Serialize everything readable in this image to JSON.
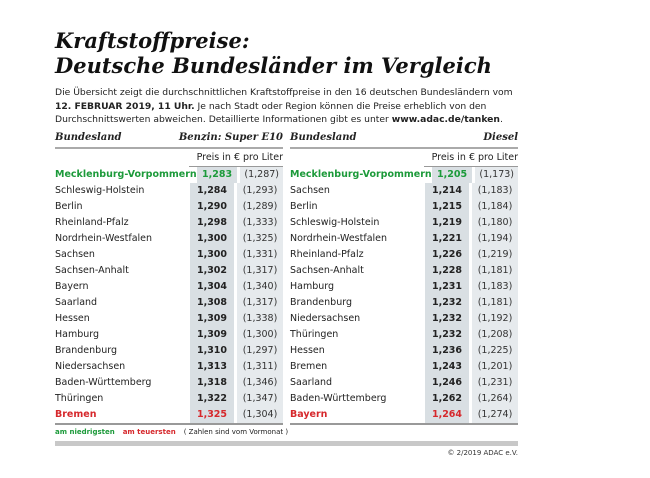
{
  "title": {
    "line1": "Kraftstoffpreise:",
    "line2": "Deutsche Bundesländer im Vergleich"
  },
  "intro": {
    "part1": "Die Übersicht zeigt die durchschnittlichen Kraftstoffpreise in den 16 deutschen Bundesländern vom ",
    "date": "12. FEBRUAR 2019, 11 Uhr.",
    "part2": " Je nach Stadt oder Region können die Preise erheblich von den Durchschnittswerten abweichen. Detaillierte Informationen gibt es unter ",
    "url": "www.adac.de/tanken",
    "part3": "."
  },
  "colors": {
    "lowest": "#1c9a3a",
    "highest": "#d6282c"
  },
  "benzin": {
    "col_state": "Bundesland",
    "col_fuel": "Benzin:  Super E10",
    "unit": "Preis in € pro Liter",
    "rows": [
      [
        "Mecklenburg-Vorpommern",
        "1,283",
        "(1,287)"
      ],
      [
        "Schleswig-Holstein",
        "1,284",
        "(1,293)"
      ],
      [
        "Berlin",
        "1,290",
        "(1,289)"
      ],
      [
        "Rheinland-Pfalz",
        "1,298",
        "(1,333)"
      ],
      [
        "Nordrhein-Westfalen",
        "1,300",
        "(1,325)"
      ],
      [
        "Sachsen",
        "1,300",
        "(1,331)"
      ],
      [
        "Sachsen-Anhalt",
        "1,302",
        "(1,317)"
      ],
      [
        "Bayern",
        "1,304",
        "(1,340)"
      ],
      [
        "Saarland",
        "1,308",
        "(1,317)"
      ],
      [
        "Hessen",
        "1,309",
        "(1,338)"
      ],
      [
        "Hamburg",
        "1,309",
        "(1,300)"
      ],
      [
        "Brandenburg",
        "1,310",
        "(1,297)"
      ],
      [
        "Niedersachsen",
        "1,313",
        "(1,311)"
      ],
      [
        "Baden-Württemberg",
        "1,318",
        "(1,346)"
      ],
      [
        "Thüringen",
        "1,322",
        "(1,347)"
      ],
      [
        "Bremen",
        "1,325",
        "(1,304)"
      ]
    ]
  },
  "diesel": {
    "col_state": "Bundesland",
    "col_fuel": "Diesel",
    "unit": "Preis in € pro Liter",
    "rows": [
      [
        "Mecklenburg-Vorpommern",
        "1,205",
        "(1,173)"
      ],
      [
        "Sachsen",
        "1,214",
        "(1,183)"
      ],
      [
        "Berlin",
        "1,215",
        "(1,184)"
      ],
      [
        "Schleswig-Holstein",
        "1,219",
        "(1,180)"
      ],
      [
        "Nordrhein-Westfalen",
        "1,221",
        "(1,194)"
      ],
      [
        "Rheinland-Pfalz",
        "1,226",
        "(1,219)"
      ],
      [
        "Sachsen-Anhalt",
        "1,228",
        "(1,181)"
      ],
      [
        "Hamburg",
        "1,231",
        "(1,183)"
      ],
      [
        "Brandenburg",
        "1,232",
        "(1,181)"
      ],
      [
        "Niedersachsen",
        "1,232",
        "(1,192)"
      ],
      [
        "Thüringen",
        "1,232",
        "(1,208)"
      ],
      [
        "Hessen",
        "1,236",
        "(1,225)"
      ],
      [
        "Bremen",
        "1,243",
        "(1,201)"
      ],
      [
        "Saarland",
        "1,246",
        "(1,231)"
      ],
      [
        "Baden-Württemberg",
        "1,262",
        "(1,264)"
      ],
      [
        "Bayern",
        "1,264",
        "(1,274)"
      ]
    ]
  },
  "legend": {
    "low": "am niedrigsten",
    "high": "am teuersten",
    "note": "( Zahlen sind vom Vormonat )"
  },
  "copyright": "© 2/2019 ADAC e.V."
}
